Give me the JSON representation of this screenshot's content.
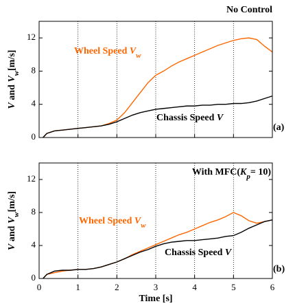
{
  "chart_data": [
    {
      "type": "line",
      "title": [
        {
          "text": "No Control"
        }
      ],
      "ylabel": [
        {
          "text": "V",
          "italic": true
        },
        {
          "text": " and "
        },
        {
          "text": "V",
          "italic": true
        },
        {
          "text": "w",
          "italic": true,
          "sub": true
        },
        {
          "text": "[m/s]"
        }
      ],
      "panel_label": "(a)",
      "show_xtick_labels": false,
      "x": [
        0.1,
        0.2,
        0.4,
        0.6,
        0.8,
        1.0,
        1.2,
        1.4,
        1.6,
        1.8,
        2.0,
        2.2,
        2.4,
        2.6,
        2.8,
        3.0,
        3.2,
        3.4,
        3.6,
        3.8,
        4.0,
        4.2,
        4.4,
        4.6,
        4.8,
        5.0,
        5.2,
        5.4,
        5.6,
        5.8,
        6.0
      ],
      "series": [
        {
          "name": [
            {
              "text": "Wheel Speed "
            },
            {
              "text": "V",
              "italic": true
            },
            {
              "text": "w",
              "italic": true,
              "sub": true
            }
          ],
          "color": "#ff6600",
          "values": [
            0,
            0.5,
            0.8,
            0.9,
            1.0,
            1.1,
            1.2,
            1.3,
            1.4,
            1.7,
            2.1,
            3.0,
            4.2,
            5.4,
            6.6,
            7.5,
            8.0,
            8.6,
            9.1,
            9.5,
            9.9,
            10.3,
            10.7,
            11.1,
            11.4,
            11.7,
            11.9,
            12.0,
            11.8,
            11.0,
            10.3
          ]
        },
        {
          "name": [
            {
              "text": "Chassis Speed "
            },
            {
              "text": "V",
              "italic": true
            }
          ],
          "color": "#000000",
          "values": [
            0,
            0.5,
            0.8,
            0.9,
            1.0,
            1.1,
            1.2,
            1.3,
            1.4,
            1.6,
            1.9,
            2.3,
            2.7,
            3.0,
            3.2,
            3.4,
            3.5,
            3.6,
            3.7,
            3.8,
            3.8,
            3.9,
            3.9,
            4.0,
            4.0,
            4.1,
            4.1,
            4.2,
            4.4,
            4.7,
            5.0
          ]
        }
      ],
      "xlim": [
        0,
        6
      ],
      "xticks": [
        0,
        1,
        2,
        3,
        4,
        5,
        6
      ],
      "ylim": [
        0,
        14
      ],
      "yticks": [
        0,
        4,
        8,
        12
      ],
      "grid": true
    },
    {
      "type": "line",
      "title": [
        {
          "text": "With MFC("
        },
        {
          "text": "K",
          "italic": true
        },
        {
          "text": "p",
          "italic": true,
          "sub": true
        },
        {
          "text": "= 10)"
        }
      ],
      "ylabel": [
        {
          "text": "V",
          "italic": true
        },
        {
          "text": " and "
        },
        {
          "text": "V",
          "italic": true
        },
        {
          "text": "w",
          "italic": true,
          "sub": true
        },
        {
          "text": "[m/s]"
        }
      ],
      "panel_label": "(b)",
      "show_xtick_labels": true,
      "xlabel": "Time [s]",
      "x": [
        0.1,
        0.2,
        0.4,
        0.6,
        0.8,
        1.0,
        1.2,
        1.4,
        1.6,
        1.8,
        2.0,
        2.2,
        2.4,
        2.6,
        2.8,
        3.0,
        3.2,
        3.4,
        3.6,
        3.8,
        4.0,
        4.2,
        4.4,
        4.6,
        4.8,
        5.0,
        5.2,
        5.4,
        5.6,
        5.8,
        6.0
      ],
      "series": [
        {
          "name": [
            {
              "text": "Wheel Speed "
            },
            {
              "text": "V",
              "italic": true
            },
            {
              "text": "w",
              "italic": true,
              "sub": true
            }
          ],
          "color": "#ff6600",
          "values": [
            0,
            0.5,
            0.7,
            0.9,
            1.0,
            1.1,
            1.1,
            1.2,
            1.4,
            1.7,
            2.0,
            2.4,
            2.9,
            3.3,
            3.7,
            4.1,
            4.5,
            4.9,
            5.3,
            5.6,
            6.0,
            6.4,
            6.8,
            7.1,
            7.5,
            8.0,
            7.6,
            7.0,
            6.7,
            6.9,
            7.1
          ]
        },
        {
          "name": [
            {
              "text": "Chassis Speed "
            },
            {
              "text": "V",
              "italic": true
            }
          ],
          "color": "#000000",
          "values": [
            0,
            0.5,
            0.9,
            1.0,
            1.0,
            1.1,
            1.1,
            1.2,
            1.4,
            1.7,
            2.0,
            2.4,
            2.8,
            3.2,
            3.5,
            3.9,
            4.2,
            4.4,
            4.5,
            4.6,
            4.6,
            4.7,
            4.8,
            4.9,
            5.1,
            5.2,
            5.6,
            6.1,
            6.5,
            6.9,
            7.1
          ]
        }
      ],
      "xlim": [
        0,
        6
      ],
      "xticks": [
        0,
        1,
        2,
        3,
        4,
        5,
        6
      ],
      "ylim": [
        0,
        14
      ],
      "yticks": [
        0,
        4,
        8,
        12
      ],
      "grid": true
    }
  ]
}
